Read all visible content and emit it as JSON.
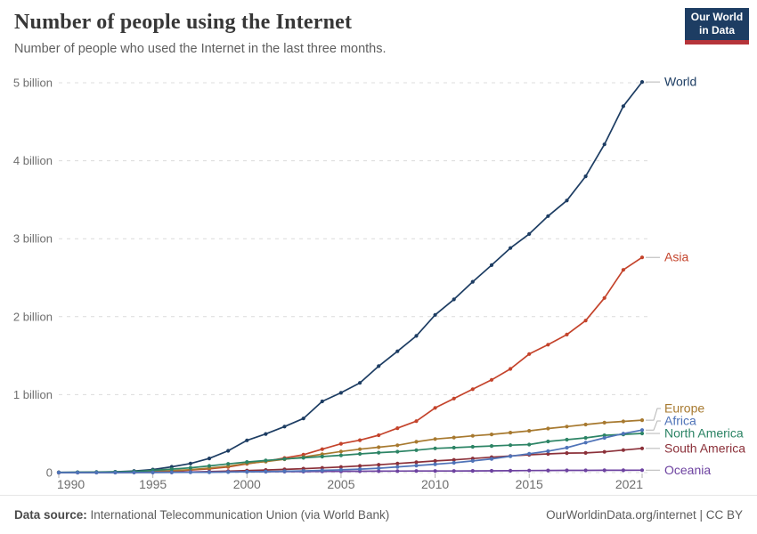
{
  "header": {
    "title": "Number of people using the Internet",
    "subtitle": "Number of people who used the Internet in the last three months.",
    "logo": {
      "line1": "Our World",
      "line2": "in Data",
      "bg_color": "#1d3d63",
      "accent_color": "#b5343a"
    }
  },
  "footer": {
    "datasource_label": "Data source:",
    "datasource_value": " International Telecommunication Union (via World Bank)",
    "link": "OurWorldinData.org/internet | CC BY"
  },
  "chart_data": {
    "type": "line",
    "title": "Number of people using the Internet",
    "subtitle": "Number of people who used the Internet in the last three months.",
    "unit": "billion people",
    "xlabel": "",
    "ylabel": "",
    "xlim": [
      1990,
      2021
    ],
    "ylim": [
      0,
      5.2
    ],
    "grid": "horizontal-dashed",
    "legend_position": "right-end-labels",
    "xticks": [
      "1990",
      "1995",
      "2000",
      "2005",
      "2010",
      "2015",
      "2021"
    ],
    "yticks": [
      {
        "value": 0,
        "label": "0"
      },
      {
        "value": 1,
        "label": "1 billion"
      },
      {
        "value": 2,
        "label": "2 billion"
      },
      {
        "value": 3,
        "label": "3 billion"
      },
      {
        "value": 4,
        "label": "4 billion"
      },
      {
        "value": 5,
        "label": "5 billion"
      }
    ],
    "x": [
      1990,
      1991,
      1992,
      1993,
      1994,
      1995,
      1996,
      1997,
      1998,
      1999,
      2000,
      2001,
      2002,
      2003,
      2004,
      2005,
      2006,
      2007,
      2008,
      2009,
      2010,
      2011,
      2012,
      2013,
      2014,
      2015,
      2016,
      2017,
      2018,
      2019,
      2020,
      2021
    ],
    "series": [
      {
        "key": "world",
        "name": "World",
        "color": "#1d3d63",
        "values": [
          0.003,
          0.004,
          0.007,
          0.01,
          0.021,
          0.039,
          0.074,
          0.117,
          0.182,
          0.28,
          0.413,
          0.495,
          0.59,
          0.694,
          0.913,
          1.024,
          1.151,
          1.365,
          1.556,
          1.753,
          2.023,
          2.222,
          2.447,
          2.661,
          2.88,
          3.06,
          3.29,
          3.49,
          3.8,
          4.21,
          4.7,
          5.01
        ]
      },
      {
        "key": "asia",
        "name": "Asia",
        "color": "#c4432b",
        "values": [
          0.0,
          0.001,
          0.001,
          0.002,
          0.004,
          0.009,
          0.018,
          0.032,
          0.048,
          0.072,
          0.113,
          0.145,
          0.187,
          0.23,
          0.3,
          0.37,
          0.415,
          0.48,
          0.57,
          0.66,
          0.83,
          0.95,
          1.07,
          1.19,
          1.33,
          1.52,
          1.64,
          1.77,
          1.95,
          2.24,
          2.6,
          2.76
        ]
      },
      {
        "key": "europe",
        "name": "Europe",
        "color": "#a7792f",
        "values": [
          0.001,
          0.002,
          0.003,
          0.005,
          0.009,
          0.015,
          0.024,
          0.038,
          0.057,
          0.082,
          0.118,
          0.142,
          0.171,
          0.2,
          0.235,
          0.27,
          0.3,
          0.325,
          0.35,
          0.395,
          0.43,
          0.45,
          0.472,
          0.49,
          0.512,
          0.535,
          0.565,
          0.59,
          0.617,
          0.64,
          0.656,
          0.672
        ]
      },
      {
        "key": "africa",
        "name": "Africa",
        "color": "#4f73b8",
        "values": [
          0.0,
          0.0,
          0.0,
          0.0,
          0.001,
          0.001,
          0.002,
          0.003,
          0.005,
          0.007,
          0.01,
          0.013,
          0.017,
          0.022,
          0.028,
          0.035,
          0.045,
          0.056,
          0.073,
          0.09,
          0.107,
          0.125,
          0.15,
          0.176,
          0.21,
          0.242,
          0.275,
          0.32,
          0.385,
          0.445,
          0.5,
          0.546
        ]
      },
      {
        "key": "north_america",
        "name": "North America",
        "color": "#2c8465",
        "values": [
          0.002,
          0.004,
          0.006,
          0.009,
          0.014,
          0.028,
          0.044,
          0.062,
          0.086,
          0.112,
          0.136,
          0.155,
          0.175,
          0.19,
          0.205,
          0.222,
          0.24,
          0.256,
          0.268,
          0.288,
          0.31,
          0.32,
          0.331,
          0.341,
          0.352,
          0.36,
          0.4,
          0.422,
          0.445,
          0.478,
          0.49,
          0.502
        ]
      },
      {
        "key": "south_america",
        "name": "South America",
        "color": "#8b3039",
        "values": [
          0.0,
          0.0,
          0.001,
          0.001,
          0.001,
          0.002,
          0.004,
          0.008,
          0.012,
          0.019,
          0.026,
          0.033,
          0.041,
          0.05,
          0.06,
          0.072,
          0.086,
          0.1,
          0.116,
          0.132,
          0.15,
          0.163,
          0.18,
          0.197,
          0.213,
          0.228,
          0.24,
          0.25,
          0.252,
          0.266,
          0.289,
          0.31
        ]
      },
      {
        "key": "oceania",
        "name": "Oceania",
        "color": "#6d42a0",
        "values": [
          0.001,
          0.001,
          0.002,
          0.002,
          0.003,
          0.004,
          0.005,
          0.007,
          0.008,
          0.009,
          0.01,
          0.011,
          0.012,
          0.013,
          0.015,
          0.016,
          0.017,
          0.018,
          0.019,
          0.02,
          0.02,
          0.021,
          0.022,
          0.023,
          0.024,
          0.026,
          0.027,
          0.028,
          0.029,
          0.03,
          0.03,
          0.031
        ]
      }
    ]
  }
}
